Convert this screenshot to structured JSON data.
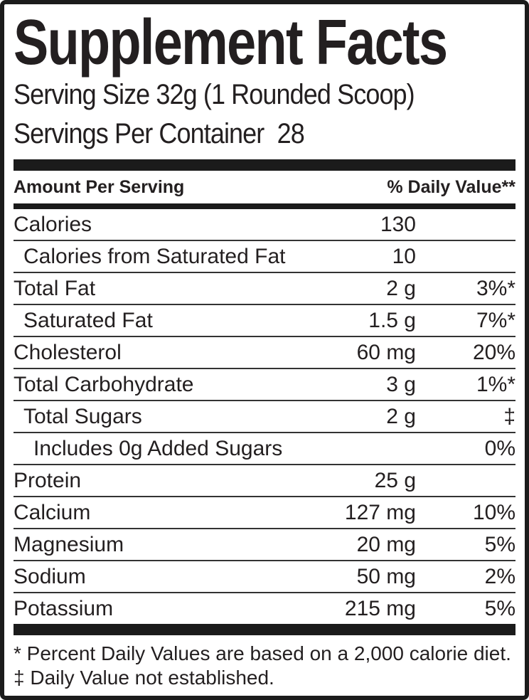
{
  "label": {
    "title": "Supplement Facts",
    "serving_size": "Serving Size 32g (1 Rounded Scoop)",
    "servings_per_container": "Servings Per Container  28",
    "table_header": {
      "amount": "Amount Per Serving",
      "daily_value": "% Daily Value**"
    },
    "rows": [
      {
        "name": "Calories",
        "amount": "130",
        "dv": "",
        "indent": 0
      },
      {
        "name": "Calories from Saturated Fat",
        "amount": "10",
        "dv": "",
        "indent": 1
      },
      {
        "name": "Total Fat",
        "amount": "2 g",
        "dv": "3%*",
        "indent": 0
      },
      {
        "name": "Saturated Fat",
        "amount": "1.5 g",
        "dv": "7%*",
        "indent": 1
      },
      {
        "name": "Cholesterol",
        "amount": "60 mg",
        "dv": "20%",
        "indent": 0
      },
      {
        "name": "Total Carbohydrate",
        "amount": "3 g",
        "dv": "1%*",
        "indent": 0
      },
      {
        "name": "Total Sugars",
        "amount": "2 g",
        "dv": "‡",
        "indent": 1
      },
      {
        "name": "Includes 0g Added Sugars",
        "amount": "",
        "dv": "0%",
        "indent": 2
      },
      {
        "name": "Protein",
        "amount": "25 g",
        "dv": "",
        "indent": 0
      },
      {
        "name": "Calcium",
        "amount": "127 mg",
        "dv": "10%",
        "indent": 0
      },
      {
        "name": "Magnesium",
        "amount": "20 mg",
        "dv": "5%",
        "indent": 0
      },
      {
        "name": "Sodium",
        "amount": "50 mg",
        "dv": "2%",
        "indent": 0
      },
      {
        "name": "Potassium",
        "amount": "215 mg",
        "dv": "5%",
        "indent": 0
      }
    ],
    "footnotes": [
      "* Percent Daily Values are based on a 2,000 calorie diet.",
      "‡ Daily Value not established."
    ],
    "colors": {
      "text": "#231f20",
      "bar": "#1b1b1b",
      "separator": "#333333",
      "background": "#ffffff"
    }
  }
}
